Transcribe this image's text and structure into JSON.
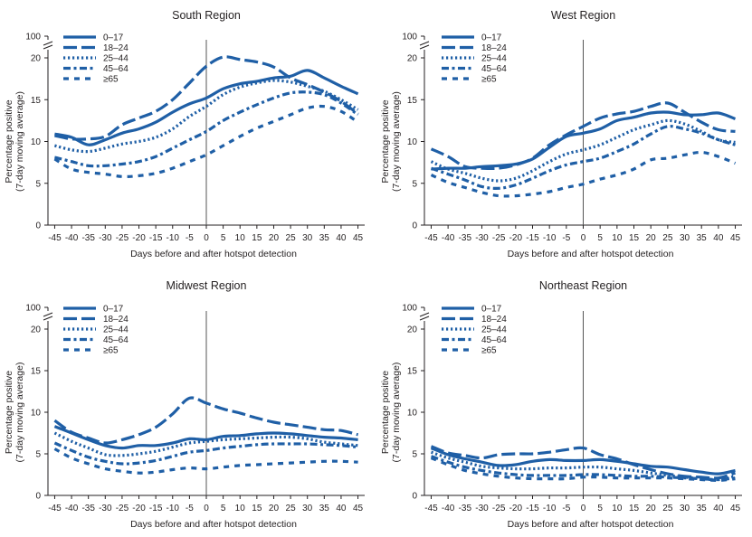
{
  "colors": {
    "series": "#1f5fa6",
    "axis": "#231f20",
    "refline": "#555555"
  },
  "chart_data": [
    {
      "type": "line",
      "title": "South Region",
      "xlabel": "Days before and after hotspot detection",
      "ylabel_line1": "Percentage positive",
      "ylabel_line2": "(7-day moving average)",
      "xlim": [
        -47,
        47
      ],
      "ylim": [
        0,
        20
      ],
      "y_break_label": "100",
      "x_ticks": [
        -45,
        -40,
        -35,
        -30,
        -25,
        -20,
        -15,
        -10,
        -5,
        0,
        5,
        10,
        15,
        20,
        25,
        30,
        35,
        40,
        45
      ],
      "x_tick_labels": [
        "-45",
        "-40",
        "-35",
        "-30",
        "-25",
        "-20",
        "-15",
        "-10",
        "-5",
        "0",
        "5",
        "10",
        "15",
        "20",
        "25",
        "30",
        "35",
        "40",
        "45"
      ],
      "y_ticks": [
        0,
        5,
        10,
        15,
        20
      ],
      "y_tick_labels": [
        "0",
        "5",
        "10",
        "15",
        "20"
      ],
      "reference_x": 0,
      "x": [
        -45,
        -40,
        -35,
        -30,
        -25,
        -20,
        -15,
        -10,
        -5,
        0,
        5,
        10,
        15,
        20,
        25,
        30,
        35,
        40,
        45
      ],
      "series": [
        {
          "name": "0–17",
          "style": "solid",
          "values": [
            10.9,
            10.5,
            9.6,
            10.2,
            11.0,
            11.5,
            12.3,
            13.5,
            14.5,
            15.2,
            16.3,
            16.9,
            17.2,
            17.6,
            17.8,
            18.5,
            17.6,
            16.6,
            15.7
          ]
        },
        {
          "name": "18–24",
          "style": "longdash",
          "values": [
            10.7,
            10.3,
            10.3,
            10.6,
            12.0,
            12.8,
            13.6,
            15.0,
            17.0,
            19.0,
            20.1,
            19.8,
            19.5,
            18.9,
            17.6,
            16.8,
            15.9,
            14.8,
            13.3
          ]
        },
        {
          "name": "25–44",
          "style": "dot",
          "values": [
            9.5,
            9.0,
            8.8,
            9.2,
            9.7,
            10.0,
            10.5,
            11.5,
            13.0,
            14.2,
            15.6,
            16.5,
            17.0,
            17.3,
            17.1,
            16.6,
            16.0,
            15.0,
            13.8
          ]
        },
        {
          "name": "45–64",
          "style": "dashdot",
          "values": [
            8.1,
            7.6,
            7.1,
            7.1,
            7.3,
            7.6,
            8.2,
            9.2,
            10.2,
            11.2,
            12.5,
            13.5,
            14.4,
            15.2,
            15.8,
            15.9,
            15.6,
            14.6,
            13.2
          ]
        },
        {
          "name": "≥65",
          "style": "shortdash",
          "values": [
            7.9,
            6.7,
            6.3,
            6.1,
            5.8,
            5.9,
            6.2,
            6.8,
            7.6,
            8.4,
            9.5,
            10.6,
            11.6,
            12.4,
            13.2,
            14.0,
            14.2,
            13.6,
            12.3
          ]
        }
      ]
    },
    {
      "type": "line",
      "title": "West Region",
      "xlabel": "Days before and after hotspot detection",
      "ylabel_line1": "Percentage positive",
      "ylabel_line2": "(7-day moving average)",
      "xlim": [
        -47,
        47
      ],
      "ylim": [
        0,
        20
      ],
      "y_break_label": "100",
      "x_ticks": [
        -45,
        -40,
        -35,
        -30,
        -25,
        -20,
        -15,
        -10,
        -5,
        0,
        5,
        10,
        15,
        20,
        25,
        30,
        35,
        40,
        45
      ],
      "x_tick_labels": [
        "-45",
        "-40",
        "-35",
        "-30",
        "-25",
        "-20",
        "-15",
        "-10",
        "-5",
        "0",
        "5",
        "10",
        "15",
        "20",
        "25",
        "30",
        "35",
        "40",
        "45"
      ],
      "y_ticks": [
        0,
        5,
        10,
        15,
        20
      ],
      "y_tick_labels": [
        "0",
        "5",
        "10",
        "15",
        "20"
      ],
      "reference_x": 0,
      "x": [
        -45,
        -40,
        -35,
        -30,
        -25,
        -20,
        -15,
        -10,
        -5,
        0,
        5,
        10,
        15,
        20,
        25,
        30,
        35,
        40,
        45
      ],
      "series": [
        {
          "name": "0–17",
          "style": "solid",
          "values": [
            6.7,
            6.8,
            6.8,
            7.0,
            7.1,
            7.3,
            7.9,
            9.3,
            10.6,
            11.0,
            11.5,
            12.5,
            12.9,
            13.4,
            13.5,
            13.2,
            13.2,
            13.4,
            12.7
          ]
        },
        {
          "name": "18–24",
          "style": "longdash",
          "values": [
            9.1,
            8.2,
            7.0,
            6.8,
            6.8,
            7.2,
            8.0,
            9.6,
            10.8,
            11.8,
            12.8,
            13.3,
            13.6,
            14.2,
            14.6,
            13.5,
            12.3,
            11.4,
            11.2
          ]
        },
        {
          "name": "25–44",
          "style": "dot",
          "values": [
            7.6,
            6.7,
            6.2,
            5.6,
            5.3,
            5.6,
            6.5,
            7.6,
            8.5,
            9.0,
            9.6,
            10.5,
            11.4,
            12.0,
            12.5,
            12.1,
            11.2,
            10.2,
            9.9
          ]
        },
        {
          "name": "45–64",
          "style": "dashdot",
          "values": [
            6.8,
            6.1,
            5.4,
            4.6,
            4.4,
            4.8,
            5.6,
            6.5,
            7.2,
            7.6,
            8.0,
            8.8,
            9.7,
            10.9,
            11.8,
            11.5,
            11.0,
            10.2,
            9.6
          ]
        },
        {
          "name": "≥65",
          "style": "shortdash",
          "values": [
            6.0,
            5.1,
            4.5,
            3.9,
            3.5,
            3.5,
            3.7,
            4.0,
            4.5,
            4.9,
            5.5,
            6.0,
            6.7,
            7.8,
            8.0,
            8.4,
            8.7,
            8.2,
            7.4
          ]
        }
      ]
    },
    {
      "type": "line",
      "title": "Midwest Region",
      "xlabel": "Days before and after hotspot detection",
      "ylabel_line1": "Percentage positive",
      "ylabel_line2": "(7-day moving average)",
      "xlim": [
        -47,
        47
      ],
      "ylim": [
        0,
        20
      ],
      "y_break_label": "100",
      "x_ticks": [
        -45,
        -40,
        -35,
        -30,
        -25,
        -20,
        -15,
        -10,
        -5,
        0,
        5,
        10,
        15,
        20,
        25,
        30,
        35,
        40,
        45
      ],
      "x_tick_labels": [
        "-45",
        "-40",
        "-35",
        "-30",
        "-25",
        "-20",
        "-15",
        "-10",
        "-5",
        "0",
        "5",
        "10",
        "15",
        "20",
        "25",
        "30",
        "35",
        "40",
        "45"
      ],
      "y_ticks": [
        0,
        5,
        10,
        15,
        20
      ],
      "y_tick_labels": [
        "0",
        "5",
        "10",
        "15",
        "20"
      ],
      "reference_x": 0,
      "x": [
        -45,
        -40,
        -35,
        -30,
        -25,
        -20,
        -15,
        -10,
        -5,
        0,
        5,
        10,
        15,
        20,
        25,
        30,
        35,
        40,
        45
      ],
      "series": [
        {
          "name": "0–17",
          "style": "solid",
          "values": [
            8.3,
            7.5,
            6.7,
            6.0,
            5.7,
            6.0,
            6.0,
            6.3,
            6.8,
            6.7,
            7.1,
            7.2,
            7.4,
            7.5,
            7.4,
            7.2,
            7.0,
            6.9,
            6.7
          ]
        },
        {
          "name": "18–24",
          "style": "longdash",
          "values": [
            9.0,
            7.6,
            6.9,
            6.3,
            6.7,
            7.3,
            8.2,
            9.8,
            11.7,
            11.1,
            10.4,
            9.9,
            9.3,
            8.8,
            8.5,
            8.2,
            7.9,
            7.8,
            7.3
          ]
        },
        {
          "name": "25–44",
          "style": "dot",
          "values": [
            7.5,
            6.5,
            5.7,
            4.9,
            4.8,
            5.0,
            5.3,
            5.8,
            6.3,
            6.5,
            6.7,
            6.8,
            6.9,
            7.0,
            7.0,
            6.8,
            6.4,
            6.2,
            6.0
          ]
        },
        {
          "name": "45–64",
          "style": "dashdot",
          "values": [
            6.3,
            5.4,
            4.6,
            4.1,
            3.8,
            3.9,
            4.2,
            4.7,
            5.2,
            5.4,
            5.7,
            5.9,
            6.1,
            6.2,
            6.2,
            6.2,
            6.1,
            6.0,
            5.8
          ]
        },
        {
          "name": "≥65",
          "style": "shortdash",
          "values": [
            5.6,
            4.5,
            3.8,
            3.2,
            2.9,
            2.7,
            2.8,
            3.1,
            3.3,
            3.2,
            3.4,
            3.6,
            3.7,
            3.8,
            3.9,
            4.0,
            4.1,
            4.1,
            4.0
          ]
        }
      ]
    },
    {
      "type": "line",
      "title": "Northeast Region",
      "xlabel": "Days before and after hotspot detection",
      "ylabel_line1": "Percentage positive",
      "ylabel_line2": "(7-day moving average)",
      "xlim": [
        -47,
        47
      ],
      "ylim": [
        0,
        20
      ],
      "y_break_label": "100",
      "x_ticks": [
        -45,
        -40,
        -35,
        -30,
        -25,
        -20,
        -15,
        -10,
        -5,
        0,
        5,
        10,
        15,
        20,
        25,
        30,
        35,
        40,
        45
      ],
      "x_tick_labels": [
        "-45",
        "-40",
        "-35",
        "-30",
        "-25",
        "-20",
        "-15",
        "-10",
        "-5",
        "0",
        "5",
        "10",
        "15",
        "20",
        "25",
        "30",
        "35",
        "40",
        "45"
      ],
      "y_ticks": [
        0,
        5,
        10,
        15,
        20
      ],
      "y_tick_labels": [
        "0",
        "5",
        "10",
        "15",
        "20"
      ],
      "reference_x": 0,
      "x": [
        -45,
        -40,
        -35,
        -30,
        -25,
        -20,
        -15,
        -10,
        -5,
        0,
        5,
        10,
        15,
        20,
        25,
        30,
        35,
        40,
        45
      ],
      "series": [
        {
          "name": "0–17",
          "style": "solid",
          "values": [
            5.7,
            4.9,
            4.4,
            4.0,
            3.6,
            3.7,
            4.1,
            4.3,
            4.2,
            4.2,
            4.3,
            4.1,
            3.8,
            3.5,
            3.4,
            3.1,
            2.8,
            2.6,
            3.0
          ]
        },
        {
          "name": "18–24",
          "style": "longdash",
          "values": [
            5.9,
            5.1,
            4.8,
            4.5,
            4.9,
            5.0,
            5.0,
            5.2,
            5.5,
            5.7,
            4.9,
            4.4,
            3.7,
            3.1,
            2.6,
            2.3,
            2.2,
            2.1,
            2.7
          ]
        },
        {
          "name": "25–44",
          "style": "dot",
          "values": [
            5.2,
            4.5,
            4.0,
            3.5,
            3.3,
            3.2,
            3.2,
            3.3,
            3.3,
            3.4,
            3.4,
            3.2,
            3.0,
            2.7,
            2.4,
            2.2,
            2.0,
            1.9,
            2.3
          ]
        },
        {
          "name": "45–64",
          "style": "dashdot",
          "values": [
            4.7,
            4.0,
            3.4,
            3.0,
            2.7,
            2.5,
            2.4,
            2.4,
            2.4,
            2.5,
            2.5,
            2.4,
            2.3,
            2.3,
            2.2,
            2.1,
            2.0,
            1.9,
            2.1
          ]
        },
        {
          "name": "≥65",
          "style": "shortdash",
          "values": [
            4.5,
            3.7,
            3.0,
            2.6,
            2.3,
            2.1,
            2.0,
            2.0,
            2.0,
            2.2,
            2.2,
            2.1,
            2.1,
            2.1,
            2.1,
            2.0,
            1.9,
            1.8,
            2.0
          ]
        }
      ]
    }
  ]
}
